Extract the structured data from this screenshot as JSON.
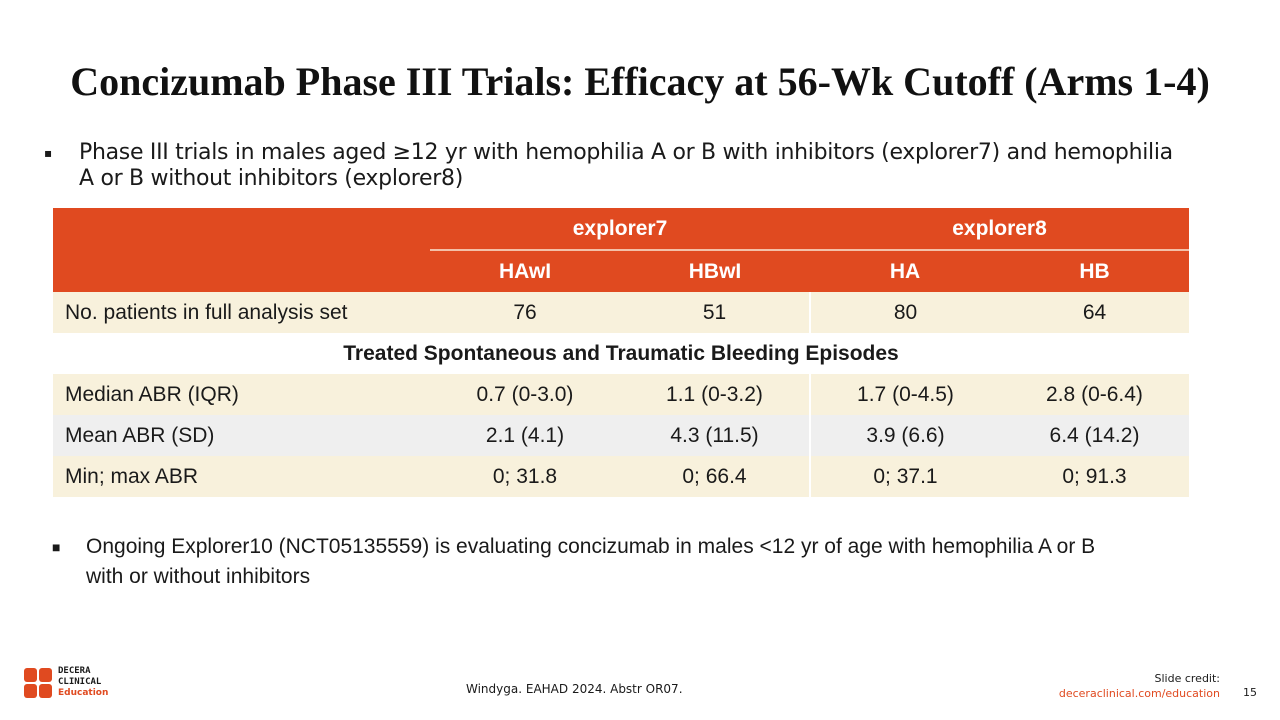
{
  "title": "Concizumab Phase III Trials: Efficacy at 56-Wk Cutoff (Arms 1-4)",
  "bullet1": "Phase III trials in males aged ≥12 yr with hemophilia A or B with inhibitors (explorer7) and hemophilia A or B without inhibitors (explorer8)",
  "table": {
    "groups": [
      "explorer7",
      "explorer8"
    ],
    "columns": [
      "HAwI",
      "HBwI",
      "HA",
      "HB"
    ],
    "patients": {
      "label": "No. patients in full analysis set",
      "values": [
        "76",
        "51",
        "80",
        "64"
      ]
    },
    "section": "Treated Spontaneous and Traumatic Bleeding Episodes",
    "rows": [
      {
        "label": "Median ABR (IQR)",
        "values": [
          "0.7 (0-3.0)",
          "1.1 (0-3.2)",
          "1.7 (0-4.5)",
          "2.8 (0-6.4)"
        ]
      },
      {
        "label": "Mean ABR (SD)",
        "values": [
          "2.1 (4.1)",
          "4.3 (11.5)",
          "3.9 (6.6)",
          "6.4 (14.2)"
        ]
      },
      {
        "label": "Min; max ABR",
        "values": [
          "0; 31.8",
          "0; 66.4",
          "0; 37.1",
          "0; 91.3"
        ]
      }
    ]
  },
  "bullet2": "Ongoing Explorer10 (NCT05135559) is evaluating concizumab in males <12 yr of age with hemophilia A or B with or without inhibitors",
  "footer": {
    "logo": [
      "DECERA",
      "CLINICAL",
      "Education"
    ],
    "citation": "Windyga. EAHAD 2024. Abstr OR07.",
    "credit_label": "Slide credit:",
    "credit_link": "deceraclinical.com/education",
    "page": "15"
  },
  "colors": {
    "accent": "#e04a20",
    "cream": "#f8f1dc",
    "grey": "#efefef"
  }
}
